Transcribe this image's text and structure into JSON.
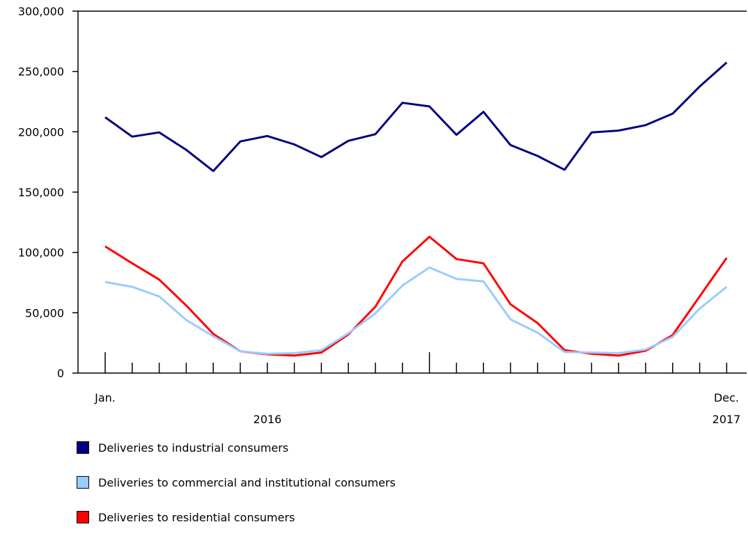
{
  "chart_data": {
    "type": "line",
    "x": [
      "2016-01",
      "2016-02",
      "2016-03",
      "2016-04",
      "2016-05",
      "2016-06",
      "2016-07",
      "2016-08",
      "2016-09",
      "2016-10",
      "2016-11",
      "2016-12",
      "2017-01",
      "2017-02",
      "2017-03",
      "2017-04",
      "2017-05",
      "2017-06",
      "2017-07",
      "2017-08",
      "2017-09",
      "2017-10",
      "2017-11",
      "2017-12"
    ],
    "x_tick_labels": {
      "first_month": "Jan.",
      "last_month": "Dec.",
      "first_year": "2016",
      "last_year": "2017"
    },
    "y_tick_labels": [
      "0",
      "50,000",
      "100,000",
      "150,000",
      "200,000",
      "250,000",
      "300,000"
    ],
    "ylim": [
      0,
      300000
    ],
    "grid": false,
    "legend_position": "bottom",
    "series": [
      {
        "name": "Deliveries to industrial consumers",
        "color": "#000080",
        "values": [
          212000,
          196000,
          199500,
          185000,
          167500,
          192000,
          196500,
          189500,
          179000,
          192500,
          198000,
          224000,
          221000,
          197500,
          216500,
          189000,
          180000,
          168500,
          199500,
          201000,
          205500,
          215000,
          237500,
          257500
        ]
      },
      {
        "name": "Deliveries to commercial and institutional consumers",
        "color": "#99ccff",
        "values": [
          75500,
          71500,
          63500,
          44000,
          30500,
          18000,
          16000,
          16500,
          19000,
          33000,
          49500,
          72500,
          87500,
          78000,
          76000,
          44500,
          33500,
          17500,
          17000,
          16500,
          19500,
          30000,
          53500,
          71500
        ]
      },
      {
        "name": "Deliveries to residential consumers",
        "color": "#ff0000",
        "values": [
          105000,
          91000,
          77500,
          56000,
          32500,
          18000,
          15500,
          14500,
          17000,
          32000,
          55000,
          92500,
          113000,
          94500,
          91000,
          57000,
          41500,
          19000,
          16000,
          14500,
          18500,
          31500,
          63500,
          95500
        ]
      }
    ]
  }
}
